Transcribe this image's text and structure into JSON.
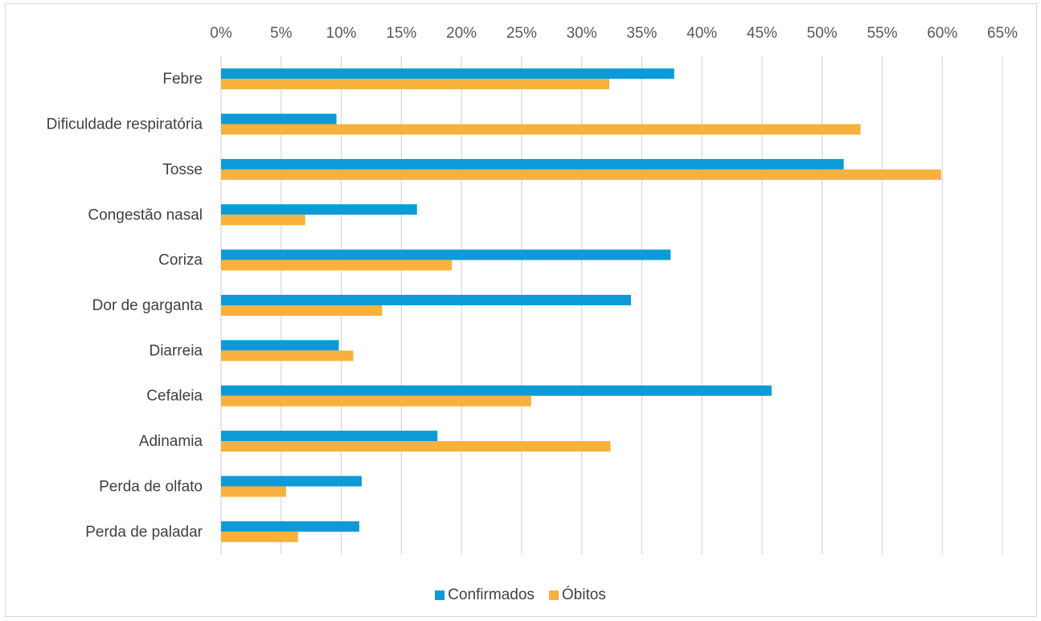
{
  "chart_data": {
    "type": "bar",
    "orientation": "horizontal",
    "categories": [
      "Febre",
      "Dificuldade respiratória",
      "Tosse",
      "Congestão nasal",
      "Coriza",
      "Dor de garganta",
      "Diarreia",
      "Cefaleia",
      "Adinamia",
      "Perda de olfato",
      "Perda de paladar"
    ],
    "series": [
      {
        "name": "Confirmados",
        "color": "#0d9bd7",
        "values": [
          37.7,
          9.6,
          51.8,
          16.3,
          37.4,
          34.1,
          9.8,
          45.8,
          18.0,
          11.7,
          11.5
        ]
      },
      {
        "name": "Óbitos",
        "color": "#f7b13c",
        "values": [
          32.3,
          53.2,
          59.9,
          7.0,
          19.2,
          13.4,
          11.0,
          25.8,
          32.4,
          5.4,
          6.4
        ]
      }
    ],
    "xlim": [
      0,
      65
    ],
    "tick_labels": [
      "0%",
      "5%",
      "10%",
      "15%",
      "20%",
      "25%",
      "30%",
      "35%",
      "40%",
      "45%",
      "50%",
      "55%",
      "60%",
      "65%"
    ],
    "x_axis_position": "top",
    "grid": true,
    "legend_position": "bottom"
  }
}
